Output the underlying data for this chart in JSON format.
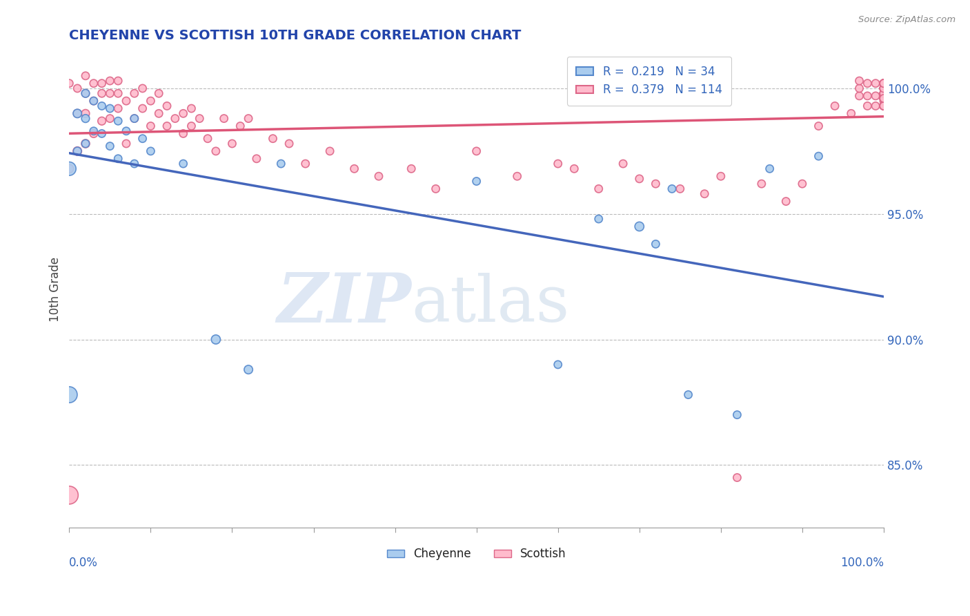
{
  "title": "CHEYENNE VS SCOTTISH 10TH GRADE CORRELATION CHART",
  "source": "Source: ZipAtlas.com",
  "ylabel": "10th Grade",
  "right_y_ticks": [
    0.85,
    0.9,
    0.95,
    1.0
  ],
  "right_y_labels": [
    "85.0%",
    "90.0%",
    "95.0%",
    "100.0%"
  ],
  "xlim": [
    0.0,
    1.0
  ],
  "ylim": [
    0.825,
    1.015
  ],
  "cheyenne_R": 0.219,
  "cheyenne_N": 34,
  "scottish_R": 0.379,
  "scottish_N": 114,
  "cheyenne_color": "#aaccee",
  "scottish_color": "#ffbbcc",
  "cheyenne_edge_color": "#5588cc",
  "scottish_edge_color": "#dd6688",
  "cheyenne_line_color": "#4466bb",
  "scottish_line_color": "#dd5577",
  "legend_color": "#3366bb",
  "title_color": "#2244aa",
  "background_color": "#FFFFFF",
  "grid_color": "#bbbbbb",
  "cheyenne_x": [
    0.0,
    0.0,
    0.01,
    0.01,
    0.02,
    0.02,
    0.02,
    0.03,
    0.03,
    0.04,
    0.04,
    0.05,
    0.05,
    0.06,
    0.06,
    0.07,
    0.08,
    0.08,
    0.09,
    0.1,
    0.14,
    0.18,
    0.22,
    0.26,
    0.5,
    0.6,
    0.65,
    0.7,
    0.72,
    0.74,
    0.76,
    0.82,
    0.86,
    0.92
  ],
  "cheyenne_y": [
    0.968,
    0.878,
    0.99,
    0.975,
    0.998,
    0.988,
    0.978,
    0.995,
    0.983,
    0.993,
    0.982,
    0.992,
    0.977,
    0.987,
    0.972,
    0.983,
    0.988,
    0.97,
    0.98,
    0.975,
    0.97,
    0.9,
    0.888,
    0.97,
    0.963,
    0.89,
    0.948,
    0.945,
    0.938,
    0.96,
    0.878,
    0.87,
    0.968,
    0.973
  ],
  "cheyenne_sizes": [
    200,
    280,
    80,
    70,
    70,
    70,
    65,
    65,
    65,
    65,
    65,
    65,
    65,
    65,
    65,
    65,
    65,
    65,
    65,
    65,
    65,
    90,
    80,
    65,
    65,
    65,
    65,
    90,
    65,
    65,
    65,
    65,
    65,
    65
  ],
  "scottish_x": [
    0.0,
    0.0,
    0.0,
    0.01,
    0.01,
    0.01,
    0.02,
    0.02,
    0.02,
    0.02,
    0.03,
    0.03,
    0.03,
    0.04,
    0.04,
    0.04,
    0.05,
    0.05,
    0.05,
    0.06,
    0.06,
    0.06,
    0.07,
    0.07,
    0.08,
    0.08,
    0.09,
    0.09,
    0.1,
    0.1,
    0.11,
    0.11,
    0.12,
    0.12,
    0.13,
    0.14,
    0.14,
    0.15,
    0.15,
    0.16,
    0.17,
    0.18,
    0.19,
    0.2,
    0.21,
    0.22,
    0.23,
    0.25,
    0.27,
    0.29,
    0.32,
    0.35,
    0.38,
    0.42,
    0.45,
    0.5,
    0.55,
    0.6,
    0.62,
    0.65,
    0.68,
    0.7,
    0.72,
    0.75,
    0.78,
    0.8,
    0.82,
    0.85,
    0.88,
    0.9,
    0.92,
    0.94,
    0.96,
    0.97,
    0.97,
    0.97,
    0.98,
    0.98,
    0.98,
    0.99,
    0.99,
    0.99,
    1.0,
    1.0,
    1.0,
    1.0,
    1.0,
    1.0,
    1.0,
    1.0,
    1.0,
    1.0,
    1.0,
    1.0,
    1.0,
    1.0,
    1.0,
    1.0,
    1.0,
    1.0,
    1.0,
    1.0,
    1.0,
    1.0,
    1.0,
    1.0,
    1.0,
    1.0,
    1.0,
    1.0,
    1.0,
    1.0,
    1.0,
    1.0
  ],
  "scottish_y": [
    0.838,
    0.968,
    1.002,
    0.975,
    0.99,
    1.0,
    0.978,
    0.99,
    0.998,
    1.005,
    0.982,
    0.995,
    1.002,
    0.987,
    0.998,
    1.002,
    0.988,
    0.998,
    1.003,
    0.992,
    0.998,
    1.003,
    0.978,
    0.995,
    0.988,
    0.998,
    0.992,
    1.0,
    0.985,
    0.995,
    0.99,
    0.998,
    0.985,
    0.993,
    0.988,
    0.982,
    0.99,
    0.985,
    0.992,
    0.988,
    0.98,
    0.975,
    0.988,
    0.978,
    0.985,
    0.988,
    0.972,
    0.98,
    0.978,
    0.97,
    0.975,
    0.968,
    0.965,
    0.968,
    0.96,
    0.975,
    0.965,
    0.97,
    0.968,
    0.96,
    0.97,
    0.964,
    0.962,
    0.96,
    0.958,
    0.965,
    0.845,
    0.962,
    0.955,
    0.962,
    0.985,
    0.993,
    0.99,
    0.997,
    1.0,
    1.003,
    0.993,
    0.997,
    1.002,
    0.993,
    0.997,
    1.002,
    0.993,
    0.996,
    0.998,
    1.0,
    1.002,
    0.993,
    0.996,
    0.998,
    1.0,
    1.002,
    0.995,
    0.997,
    1.0,
    1.002,
    0.993,
    0.996,
    0.998,
    1.0,
    1.002,
    0.993,
    0.996,
    0.998,
    1.0,
    1.002,
    0.993,
    0.996,
    0.998,
    1.0,
    1.002,
    0.993,
    0.996,
    1.002
  ],
  "scottish_sizes": [
    350,
    80,
    65,
    80,
    70,
    65,
    75,
    70,
    65,
    65,
    70,
    65,
    65,
    70,
    65,
    65,
    65,
    65,
    65,
    65,
    65,
    65,
    65,
    65,
    65,
    65,
    65,
    65,
    65,
    65,
    65,
    65,
    65,
    65,
    65,
    65,
    65,
    65,
    65,
    65,
    65,
    65,
    65,
    65,
    65,
    65,
    65,
    65,
    65,
    65,
    65,
    65,
    65,
    65,
    65,
    65,
    65,
    65,
    65,
    65,
    65,
    65,
    65,
    65,
    65,
    65,
    65,
    65,
    65,
    65,
    65,
    65,
    65,
    65,
    65,
    65,
    65,
    65,
    65,
    65,
    65,
    65,
    65,
    65,
    65,
    65,
    65,
    65,
    65,
    65,
    65,
    65,
    65,
    65,
    65,
    65,
    65,
    65,
    65,
    65,
    65,
    65,
    65,
    65,
    65,
    65,
    65,
    65,
    65,
    65,
    65,
    65,
    65,
    65
  ]
}
